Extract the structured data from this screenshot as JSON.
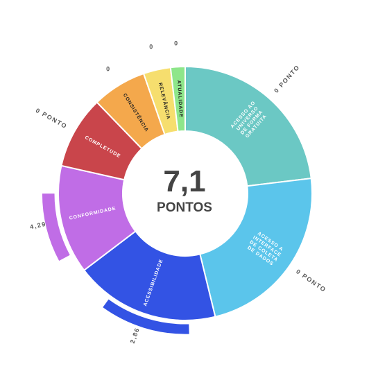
{
  "center": {
    "value": "7,1",
    "unit": "PONTOS"
  },
  "chart_data": {
    "type": "pie",
    "donut": true,
    "segments": [
      {
        "name": "ACESSO AO UNIVERSO DE FORMA GRATUITA",
        "lines": [
          "ACESSO AO",
          "UNIVERSO",
          "DE FORMA",
          "GRATUITA"
        ],
        "weight": 1,
        "color": "#6bc8c4",
        "dark_text": false,
        "score": 0,
        "score_label": "0 PONTO"
      },
      {
        "name": "ACESSO A INTERFACE DE COLETA DE DADOS",
        "lines": [
          "ACESSO A",
          "INTERFACE",
          "DE COLETA",
          "DE DADOS"
        ],
        "weight": 1,
        "color": "#5bc5eb",
        "dark_text": false,
        "score": 0,
        "score_label": "0 PONTO"
      },
      {
        "name": "ACESSIBILIDADE",
        "lines": [
          "ACESSIBILIDADE"
        ],
        "weight": 0.8,
        "color": "#3353e4",
        "dark_text": false,
        "score": 2.86,
        "score_label": "2,86"
      },
      {
        "name": "CONFORMIDADE",
        "lines": [
          "CONFORMIDADE"
        ],
        "weight": 0.6,
        "color": "#c06de6",
        "dark_text": false,
        "score": 4.29,
        "score_label": "4,29"
      },
      {
        "name": "COMPLETUDE",
        "lines": [
          "COMPLETUDE"
        ],
        "weight": 0.4,
        "color": "#c9454b",
        "dark_text": false,
        "score": 0,
        "score_label": "0 PONTO"
      },
      {
        "name": "CONSISTÊNCIA",
        "lines": [
          "CONSISTÊNCIA"
        ],
        "weight": 0.3,
        "color": "#f4a84c",
        "dark_text": true,
        "score": 0,
        "score_label": "0"
      },
      {
        "name": "RELEVÂNCIA",
        "lines": [
          "RELEVÂNCIA"
        ],
        "weight": 0.15,
        "color": "#f6de6e",
        "dark_text": true,
        "score": 0,
        "score_label": "0"
      },
      {
        "name": "ATUALIDADE",
        "lines": [
          "ATUALIDADE"
        ],
        "weight": 0.08,
        "color": "#8ee68a",
        "dark_text": true,
        "score": 0,
        "score_label": "0"
      }
    ],
    "score_max": 10,
    "title": ""
  }
}
